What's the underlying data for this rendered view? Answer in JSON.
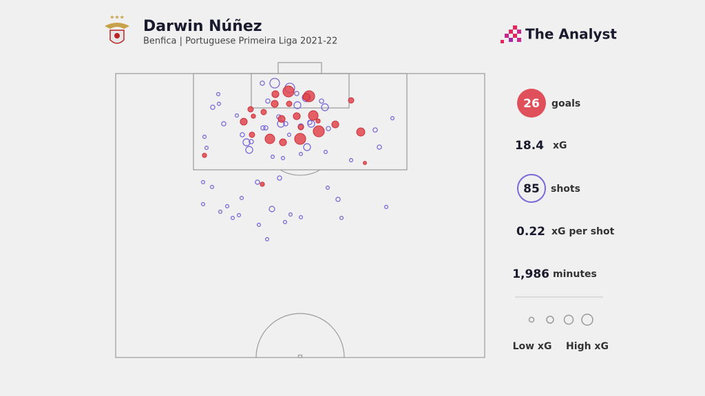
{
  "chart_data": {
    "type": "scatter",
    "title": "Darwin Núñez",
    "subtitle": "Benfica | Portuguese Primeira Liga 2021-22",
    "xlim": [
      0,
      536
    ],
    "ylim": [
      0,
      413
    ],
    "series": [
      {
        "name": "goals",
        "color": "#e0464f",
        "x": [
          251,
          232,
          281,
          231,
          342,
          196,
          215,
          287,
          263,
          241,
          200,
          186,
          319,
          295,
          269,
          356,
          294,
          224,
          243,
          268,
          198,
          129,
          362,
          213,
          277,
          252
        ],
        "y": [
          26,
          30,
          33,
          44,
          39,
          52,
          56,
          61,
          62,
          66,
          62,
          70,
          74,
          84,
          78,
          85,
          69,
          95,
          100,
          95,
          89,
          119,
          130,
          161,
          34,
          44
        ],
        "size": [
          0.33,
          0.13,
          0.33,
          0.13,
          0.08,
          0.08,
          0.08,
          0.25,
          0.13,
          0.13,
          0.05,
          0.13,
          0.13,
          0.33,
          0.08,
          0.18,
          0.05,
          0.25,
          0.13,
          0.33,
          0.08,
          0.05,
          0.03,
          0.05,
          0.13,
          0.08
        ]
      },
      {
        "name": "shots",
        "color": "#7b68d8",
        "x": [
          149,
          213,
          231,
          253,
          277,
          221,
          264,
          141,
          150,
          304,
          402,
          157,
          240,
          247,
          269,
          214,
          218,
          184,
          284,
          377,
          129,
          190,
          197,
          278,
          194,
          305,
          383,
          228,
          243,
          269,
          238,
          127,
          140,
          206,
          308,
          183,
          323,
          127,
          162,
          227,
          393,
          152,
          254,
          170,
          179,
          269,
          328,
          208,
          246,
          220,
          237,
          282,
          309,
          263,
          299,
          176,
          252,
          132,
          342
        ],
        "y": [
          30,
          14,
          14,
          21,
          35,
          40,
          46,
          49,
          44,
          49,
          65,
          73,
          73,
          73,
          77,
          79,
          79,
          89,
          73,
          82,
          92,
          100,
          99,
          107,
          111,
          114,
          107,
          121,
          123,
          117,
          152,
          158,
          165,
          158,
          166,
          181,
          183,
          190,
          193,
          197,
          194,
          201,
          205,
          210,
          206,
          209,
          210,
          220,
          216,
          241,
          63,
          71,
          80,
          29,
          40,
          61,
          89,
          108,
          126
        ],
        "size": [
          0.03,
          0.05,
          0.25,
          0.25,
          0.18,
          0.05,
          0.13,
          0.05,
          0.03,
          0.13,
          0.03,
          0.05,
          0.13,
          0.05,
          0.08,
          0.05,
          0.05,
          0.05,
          0.13,
          0.05,
          0.03,
          0.13,
          0.05,
          0.13,
          0.13,
          0.03,
          0.05,
          0.03,
          0.03,
          0.03,
          0.05,
          0.03,
          0.03,
          0.05,
          0.03,
          0.03,
          0.05,
          0.03,
          0.03,
          0.08,
          0.03,
          0.03,
          0.03,
          0.03,
          0.03,
          0.03,
          0.03,
          0.03,
          0.03,
          0.03,
          0.05,
          0.05,
          0.05,
          0.05,
          0.05,
          0.03,
          0.03,
          0.03,
          0.03
        ]
      }
    ],
    "legend_labels": [
      "Low xG",
      "High xG"
    ]
  },
  "brand": "The Analyst",
  "stats": [
    {
      "value": "26",
      "label": "goals"
    },
    {
      "value": "18.4",
      "label": "xG"
    },
    {
      "value": "85",
      "label": "shots"
    },
    {
      "value": "0.22",
      "label": "xG per shot"
    },
    {
      "value": "1,986",
      "label": "minutes"
    }
  ]
}
